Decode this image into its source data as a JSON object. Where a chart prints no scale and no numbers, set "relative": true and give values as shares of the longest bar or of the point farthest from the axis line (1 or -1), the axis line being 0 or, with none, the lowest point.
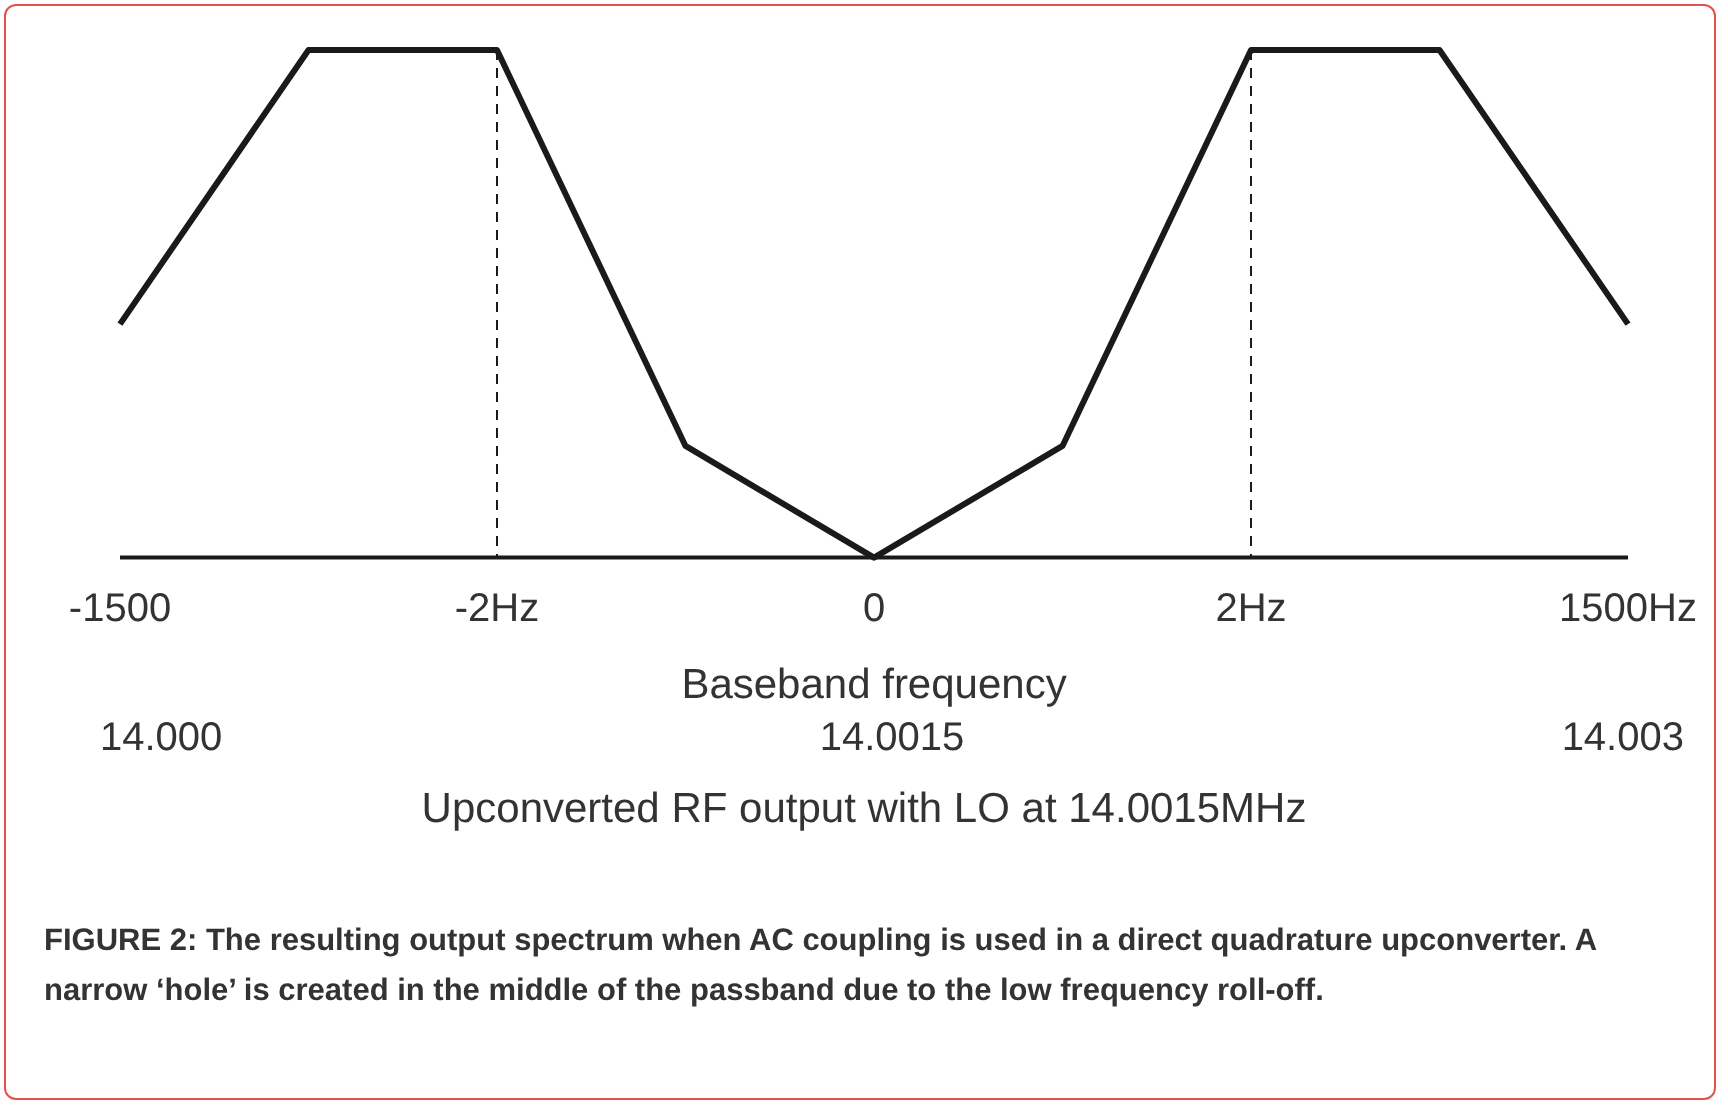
{
  "chart_data": {
    "type": "line",
    "relative": true,
    "categories": [
      "-1500",
      null,
      "-2Hz",
      null,
      "0",
      null,
      "2Hz",
      null,
      "1500Hz"
    ],
    "series": [
      {
        "color": "#1a1a1a",
        "values": [
          0.46,
          1,
          1,
          0.22,
          0,
          0.22,
          1,
          1,
          0.46
        ]
      }
    ],
    "xlabel": "Baseband frequency",
    "ref_lines": [
      {
        "axis": "x",
        "value": "-2Hz",
        "line_style": "dashed",
        "color": "#1a1a1a"
      },
      {
        "axis": "x",
        "value": "2Hz",
        "line_style": "dashed",
        "color": "#1a1a1a"
      }
    ],
    "annotations": [
      "14.000",
      "14.0015",
      "14.003",
      "Upconverted RF output with LO at 14.0015MHz",
      "FIGURE 2: The resulting output spectrum when AC coupling is used in a direct quadrature upconverter. A narrow ‘hole’ is created in the middle of the passband due to the low frequency roll-off."
    ],
    "tick_labels": "x",
    "grid": false,
    "legend": false,
    "marker": "none",
    "line_style": "solid"
  }
}
